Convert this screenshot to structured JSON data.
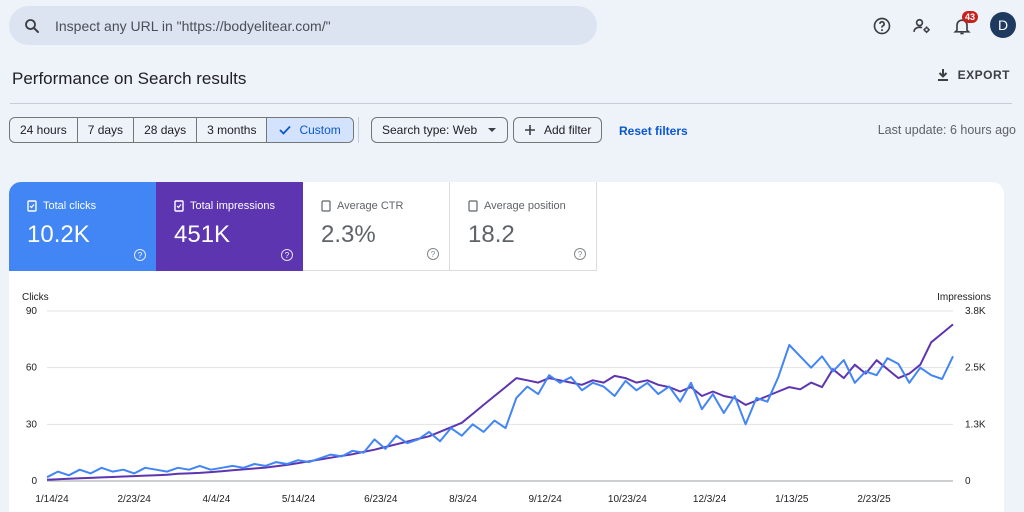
{
  "search": {
    "placeholder": "Inspect any URL in \"https://bodyelitear.com/\"",
    "icon": "search-icon"
  },
  "topbar": {
    "help_icon": "help-icon",
    "settings_icon": "account-settings-icon",
    "notifications_icon": "bell-icon",
    "notification_count": "43",
    "apps_icon": "apps-grid-icon",
    "avatar_letter": "D"
  },
  "page": {
    "title": "Performance on Search results",
    "export_label": "EXPORT"
  },
  "filters": {
    "ranges": [
      "24 hours",
      "7 days",
      "28 days",
      "3 months",
      "Custom"
    ],
    "active_range": "Custom",
    "search_type": "Search type: Web",
    "add_filter": "Add filter",
    "reset": "Reset filters",
    "last_update": "Last update: 6 hours ago"
  },
  "metrics": {
    "clicks": {
      "label": "Total clicks",
      "value": "10.2K"
    },
    "impressions": {
      "label": "Total impressions",
      "value": "451K"
    },
    "ctr": {
      "label": "Average CTR",
      "value": "2.3%"
    },
    "position": {
      "label": "Average position",
      "value": "18.2"
    }
  },
  "colors": {
    "clicks": "#4285f4",
    "impressions": "#5e35b1",
    "accent": "#0b57d0"
  },
  "chart_data": {
    "type": "line",
    "left_axis_title": "Clicks",
    "right_axis_title": "Impressions",
    "ylim_left": [
      0,
      90
    ],
    "ylim_right": [
      0,
      3800
    ],
    "yticks_left": [
      "0",
      "30",
      "60",
      "90"
    ],
    "yticks_right": [
      "0",
      "1.3K",
      "2.5K",
      "3.8K"
    ],
    "x_tick_labels": [
      "1/14/24",
      "2/23/24",
      "4/4/24",
      "5/14/24",
      "6/23/24",
      "8/3/24",
      "9/12/24",
      "10/23/24",
      "12/3/24",
      "1/13/25",
      "2/23/25"
    ],
    "grid": true,
    "series": [
      {
        "name": "Clicks",
        "axis": "left",
        "values": [
          2,
          5,
          3,
          6,
          4,
          7,
          5,
          6,
          4,
          7,
          6,
          5,
          7,
          6,
          8,
          6,
          7,
          8,
          7,
          9,
          8,
          10,
          9,
          11,
          10,
          12,
          14,
          13,
          16,
          15,
          22,
          17,
          24,
          20,
          22,
          26,
          21,
          28,
          24,
          30,
          26,
          32,
          28,
          44,
          50,
          46,
          56,
          52,
          55,
          48,
          52,
          50,
          45,
          53,
          48,
          52,
          46,
          50,
          42,
          52,
          38,
          46,
          36,
          45,
          30,
          44,
          42,
          55,
          72,
          66,
          60,
          66,
          58,
          64,
          52,
          58,
          56,
          65,
          62,
          52,
          60,
          56,
          54,
          66
        ],
        "color": "#4285f4"
      },
      {
        "name": "Impressions",
        "axis": "right",
        "values": [
          30,
          40,
          50,
          60,
          70,
          80,
          90,
          100,
          110,
          120,
          130,
          140,
          160,
          170,
          180,
          200,
          220,
          240,
          260,
          280,
          300,
          330,
          360,
          400,
          440,
          480,
          520,
          560,
          600,
          650,
          700,
          760,
          820,
          880,
          940,
          1000,
          1100,
          1200,
          1300,
          1500,
          1700,
          1900,
          2100,
          2300,
          2250,
          2200,
          2300,
          2250,
          2200,
          2150,
          2250,
          2200,
          2350,
          2300,
          2200,
          2250,
          2150,
          2100,
          2000,
          2100,
          1900,
          2000,
          1900,
          1850,
          1700,
          1800,
          1900,
          2000,
          2100,
          2050,
          2200,
          2100,
          2500,
          2300,
          2600,
          2400,
          2700,
          2500,
          2300,
          2400,
          2600,
          3100,
          3300,
          3500
        ],
        "color": "#5e35b1"
      }
    ]
  }
}
